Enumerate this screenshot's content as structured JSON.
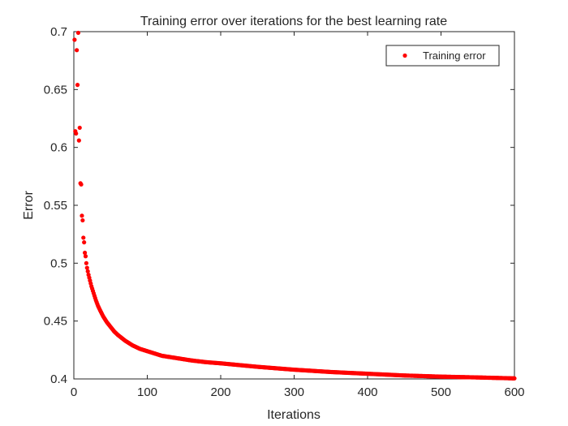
{
  "chart_data": {
    "type": "scatter",
    "title": "Training error over iterations for the best learning rate",
    "xlabel": "Iterations",
    "ylabel": "Error",
    "xlim": [
      0,
      600
    ],
    "ylim": [
      0.4,
      0.7
    ],
    "xticks": [
      "0",
      "100",
      "200",
      "300",
      "400",
      "500",
      "600"
    ],
    "yticks": [
      "0.4",
      "0.45",
      "0.5",
      "0.55",
      "0.6",
      "0.65",
      "0.7"
    ],
    "grid": false,
    "legend_position": "top-right",
    "series": [
      {
        "name": "Training error",
        "color": "#ff0000",
        "marker": "dot",
        "x": [
          1,
          2,
          3,
          4,
          5,
          6,
          7,
          8,
          9,
          10,
          11,
          12,
          13,
          14,
          15,
          16,
          17,
          18,
          19,
          20,
          22,
          24,
          26,
          28,
          30,
          33,
          36,
          40,
          45,
          50,
          55,
          60,
          70,
          80,
          90,
          100,
          120,
          140,
          160,
          180,
          200,
          250,
          300,
          350,
          400,
          450,
          500,
          550,
          600
        ],
        "y": [
          0.693,
          0.614,
          0.612,
          0.684,
          0.654,
          0.699,
          0.606,
          0.617,
          0.569,
          0.568,
          0.541,
          0.537,
          0.522,
          0.518,
          0.509,
          0.506,
          0.5,
          0.496,
          0.493,
          0.49,
          0.485,
          0.48,
          0.476,
          0.472,
          0.468,
          0.463,
          0.459,
          0.454,
          0.449,
          0.445,
          0.441,
          0.438,
          0.433,
          0.429,
          0.426,
          0.424,
          0.42,
          0.418,
          0.416,
          0.4145,
          0.4135,
          0.4105,
          0.408,
          0.406,
          0.4045,
          0.403,
          0.402,
          0.4013,
          0.4005
        ]
      }
    ]
  }
}
